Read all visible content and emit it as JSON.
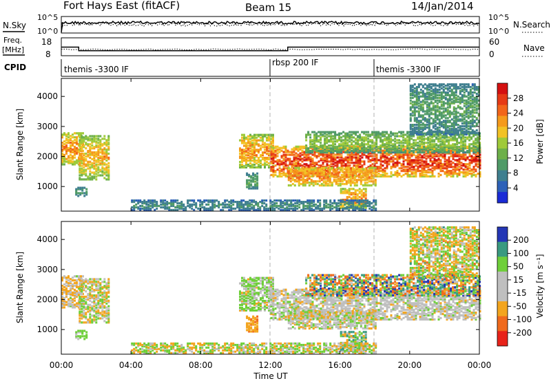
{
  "header": {
    "radar": "Fort Hays East (fitACF)",
    "beam": "Beam 15",
    "date": "14/Jan/2014"
  },
  "panels": {
    "nsky": {
      "label": "N.Sky",
      "ticks_left": [
        "10^5",
        "10^0"
      ],
      "right_label": "N.Search",
      "ticks_right": [
        "10^5",
        "10^0"
      ]
    },
    "freq": {
      "label_top": "Freq.",
      "label_unit": "[MHz]",
      "ticks_left": [
        "18",
        "8"
      ],
      "right_label": "Nave",
      "ticks_right": [
        "60",
        "0"
      ]
    },
    "cpid": {
      "label": "CPID",
      "segments": [
        {
          "start": 0,
          "text": "themis -3300 IF"
        },
        {
          "start": 12,
          "text": "rbsp 200 IF"
        },
        {
          "start": 18,
          "text": "themis -3300 IF"
        }
      ]
    }
  },
  "axes": {
    "ylabel": "Slant Range [km]",
    "xlabel": "Time UT",
    "xticks": [
      "00:00",
      "04:00",
      "08:00",
      "12:00",
      "16:00",
      "20:00",
      "00:00"
    ]
  },
  "colorbars": {
    "power": {
      "label": "Power [dB]",
      "ticks": [
        "28",
        "24",
        "20",
        "16",
        "12",
        "8",
        "4"
      ]
    },
    "velocity": {
      "label": "Velocity [m s⁻¹]",
      "ticks": [
        "200",
        "100",
        "50",
        "15",
        "-15",
        "-50",
        "-100",
        "-200"
      ]
    }
  },
  "colors": {
    "power_scale": [
      "#1a2bd6",
      "#2d61b8",
      "#3f7f8f",
      "#4f9a67",
      "#6db04a",
      "#9fca3a",
      "#f2c225",
      "#f59a1c",
      "#f2651a",
      "#e63a15",
      "#d41010"
    ],
    "velocity_scale": [
      "#e8231a",
      "#f06a1d",
      "#f3a51e",
      "#bfbfbf",
      "#bfbfbf",
      "#6fcf3a",
      "#3a9a80",
      "#2436b5"
    ]
  },
  "chart_data": {
    "type": "heatmap",
    "x_range_hours": [
      0,
      24
    ],
    "y_range_km": [
      180,
      4600
    ],
    "y_ticks_km": [
      1000,
      2000,
      3000,
      4000
    ],
    "marker_lines_hours": [
      12,
      18
    ],
    "freq_mhz": [
      {
        "from": 0,
        "to": 1,
        "value": 13
      },
      {
        "from": 1,
        "to": 13,
        "value": 10.5
      },
      {
        "from": 13,
        "to": 24,
        "value": 13
      }
    ],
    "power_range_db": [
      0,
      30
    ],
    "velocity_range_ms": [
      -250,
      250
    ],
    "regions": [
      {
        "t0": 0.0,
        "t1": 1.2,
        "r0": 1700,
        "r1": 2750,
        "power": [
          8,
          24
        ],
        "vel": [
          -60,
          20
        ]
      },
      {
        "t0": 1.0,
        "t1": 2.7,
        "r0": 1200,
        "r1": 2650,
        "power": [
          6,
          22
        ],
        "vel": [
          -40,
          40
        ]
      },
      {
        "t0": 0.8,
        "t1": 1.4,
        "r0": 650,
        "r1": 950,
        "power": [
          4,
          10
        ],
        "vel": [
          -10,
          60
        ]
      },
      {
        "t0": 10.2,
        "t1": 12.2,
        "r0": 1600,
        "r1": 2700,
        "power": [
          6,
          24
        ],
        "vel": [
          -20,
          60
        ]
      },
      {
        "t0": 10.6,
        "t1": 11.2,
        "r0": 900,
        "r1": 1400,
        "power": [
          4,
          12
        ],
        "vel": [
          -80,
          -30
        ]
      },
      {
        "t0": 12.0,
        "t1": 24.0,
        "r0": 1300,
        "r1": 2300,
        "power": [
          8,
          30
        ],
        "vel": [
          -20,
          20
        ]
      },
      {
        "t0": 13.0,
        "t1": 18.0,
        "r0": 1000,
        "r1": 1600,
        "power": [
          10,
          24
        ],
        "vel": [
          -30,
          30
        ]
      },
      {
        "t0": 16.0,
        "t1": 17.5,
        "r0": 250,
        "r1": 900,
        "power": [
          8,
          24
        ],
        "vel": [
          -60,
          150
        ]
      },
      {
        "t0": 14.0,
        "t1": 24.0,
        "r0": 2100,
        "r1": 2800,
        "power": [
          4,
          16
        ],
        "vel": [
          -150,
          200
        ]
      },
      {
        "t0": 20.0,
        "t1": 24.0,
        "r0": 2700,
        "r1": 4400,
        "power": [
          2,
          12
        ],
        "vel": [
          -80,
          80
        ]
      },
      {
        "t0": 4.0,
        "t1": 18.0,
        "r0": 180,
        "r1": 500,
        "power": [
          2,
          10
        ],
        "vel": [
          -60,
          60
        ]
      }
    ]
  }
}
